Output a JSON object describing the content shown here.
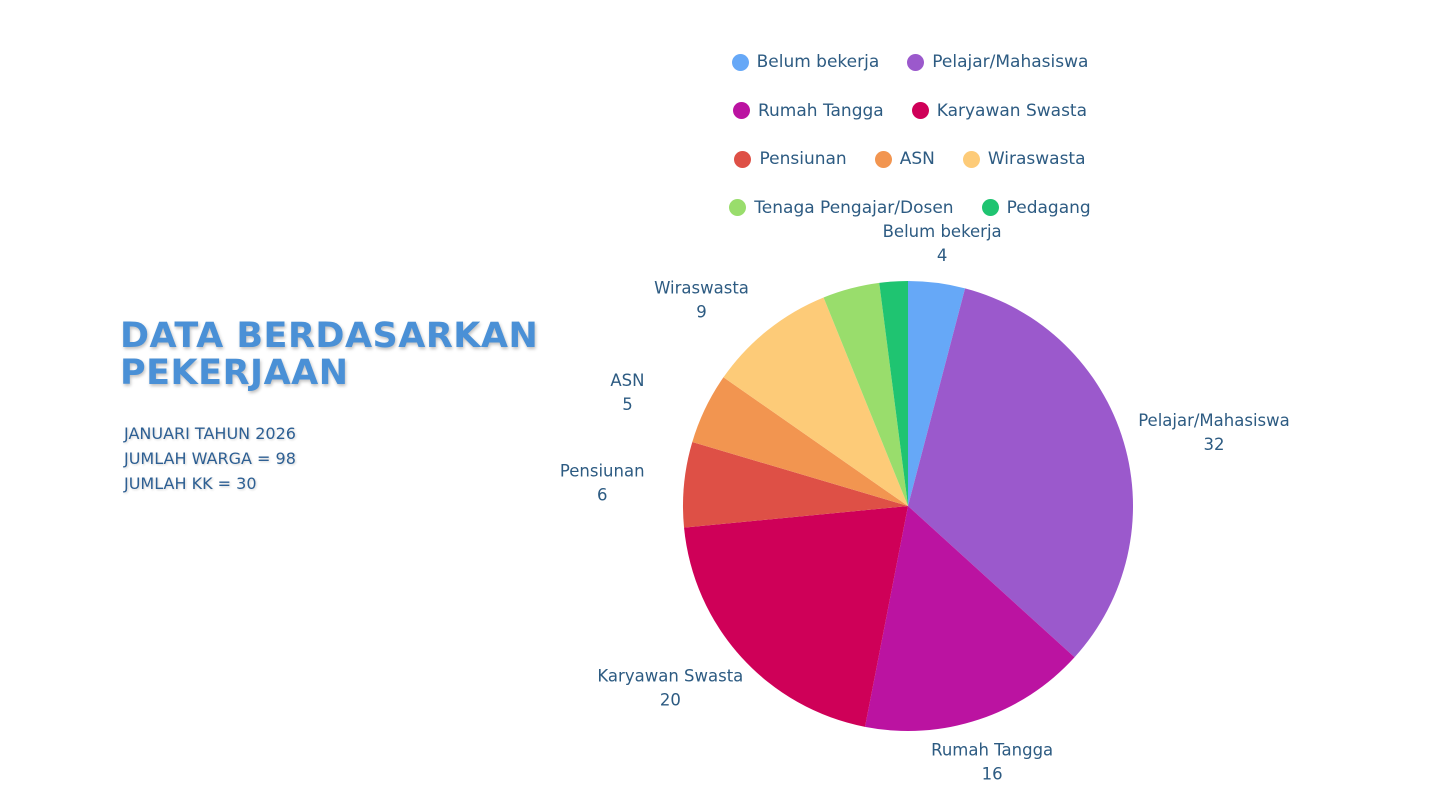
{
  "title": [
    "DATA BERDASARKAN",
    "PEKERJAAN"
  ],
  "info": [
    "JANUARI TAHUN 2026",
    "JUMLAH WARGA = 98",
    "JUMLAH KK = 30"
  ],
  "chart_data": {
    "type": "pie",
    "categories": [
      "Belum bekerja",
      "Pelajar/Mahasiswa",
      "Rumah Tangga",
      "Karyawan Swasta",
      "Pensiunan",
      "ASN",
      "Wiraswasta",
      "Tenaga Pengajar/Dosen",
      "Pedagang"
    ],
    "values": [
      4,
      32,
      16,
      20,
      6,
      5,
      9,
      4,
      2
    ],
    "colors": [
      "#66a8f7",
      "#9b59cc",
      "#bb13a1",
      "#cf0058",
      "#de5046",
      "#f29550",
      "#fdcb78",
      "#99dd6c",
      "#1fc471"
    ],
    "data_labels": [
      {
        "name": "Belum bekerja",
        "value": "4"
      },
      {
        "name": "Pelajar/Mahasiswa",
        "value": "32"
      },
      {
        "name": "Rumah Tangga",
        "value": "16"
      },
      {
        "name": "Karyawan Swasta",
        "value": "20"
      },
      {
        "name": "Pensiunan",
        "value": "6"
      },
      {
        "name": "ASN",
        "value": "5"
      },
      {
        "name": "Wiraswasta",
        "value": "9"
      },
      {
        "name": "Tenaga Pengajar/Dosen",
        "value": ""
      },
      {
        "name": "Pedagang",
        "value": ""
      }
    ],
    "legend_rows": [
      [
        "Belum bekerja",
        "Pelajar/Mahasiswa"
      ],
      [
        "Rumah Tangga",
        "Karyawan Swasta"
      ],
      [
        "Pensiunan",
        "ASN",
        "Wiraswasta"
      ],
      [
        "Tenaga Pengajar/Dosen",
        "Pedagang"
      ]
    ],
    "legend_position": "top",
    "start_angle": "12 o'clock",
    "direction": "clockwise"
  }
}
